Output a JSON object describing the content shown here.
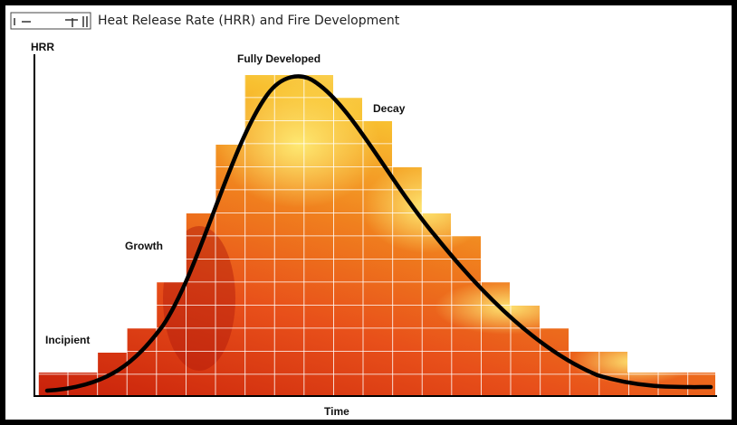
{
  "header": {
    "title": "Heat Release Rate (HRR) and Fire Development"
  },
  "axes": {
    "y_label": "HRR",
    "x_label": "Time"
  },
  "stages": [
    {
      "label": "Incipient"
    },
    {
      "label": "Growth"
    },
    {
      "label": "Fully Developed"
    },
    {
      "label": "Decay"
    }
  ]
}
